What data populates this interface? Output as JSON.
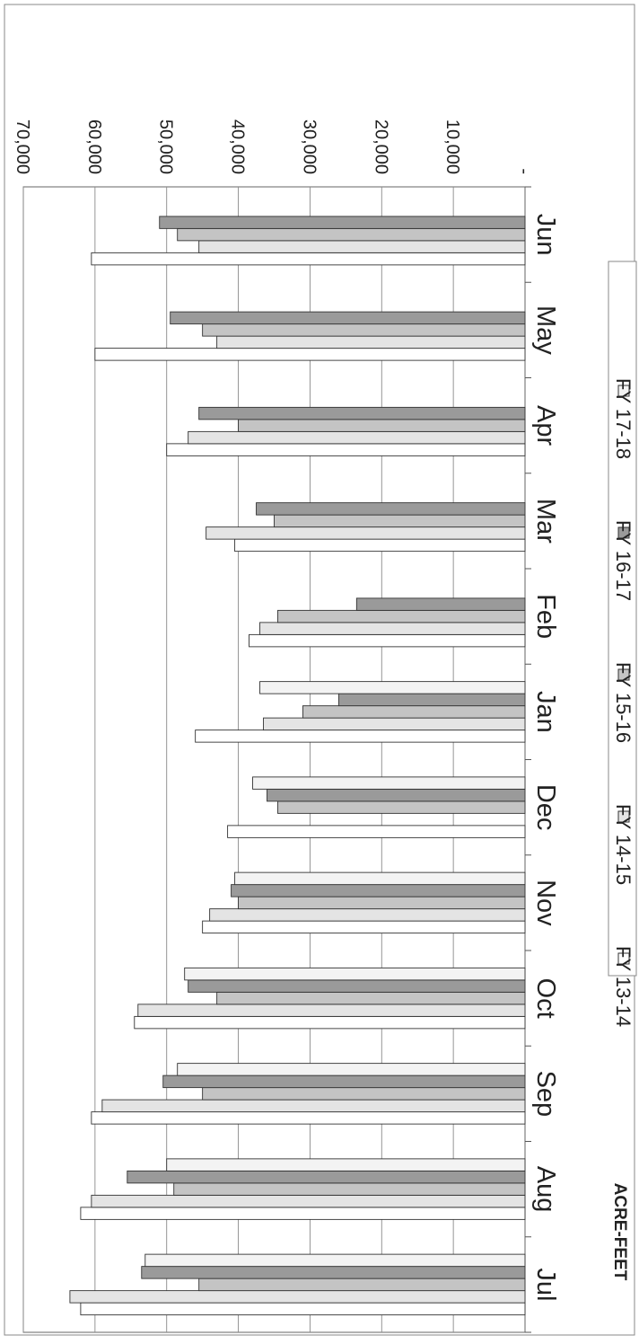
{
  "chart_data": {
    "type": "bar",
    "orientation": "rotated-180",
    "title": "",
    "xlabel": "",
    "ylabel": "ACRE-FEET",
    "ylim": [
      0,
      70000
    ],
    "yticks": [
      0,
      10000,
      20000,
      30000,
      40000,
      50000,
      60000,
      70000
    ],
    "ytick_labels": [
      "-",
      "10,000",
      "20,000",
      "30,000",
      "40,000",
      "50,000",
      "60,000",
      "70,000"
    ],
    "grid": true,
    "legend_position": "bottom",
    "categories": [
      "Jul",
      "Aug",
      "Sep",
      "Oct",
      "Nov",
      "Dec",
      "Jan",
      "Feb",
      "Mar",
      "Apr",
      "May",
      "Jun"
    ],
    "series": [
      {
        "name": "FY 13-14",
        "color": "#ffffff",
        "values": [
          62000,
          62000,
          60500,
          54500,
          45000,
          41500,
          46000,
          38500,
          40500,
          50000,
          60000,
          60500
        ]
      },
      {
        "name": "FY 14-15",
        "color": "#e4e4e4",
        "values": [
          63500,
          60500,
          59000,
          54000,
          44000,
          null,
          36500,
          37000,
          44500,
          47000,
          43000,
          45500
        ]
      },
      {
        "name": "FY 15-16",
        "color": "#c4c4c4",
        "values": [
          45500,
          49000,
          45000,
          43000,
          40000,
          34500,
          31000,
          34500,
          35000,
          40000,
          45000,
          48500
        ]
      },
      {
        "name": "FY 16-17",
        "color": "#9a9a9a",
        "values": [
          53500,
          55500,
          50500,
          47000,
          41000,
          36000,
          26000,
          23500,
          37500,
          45500,
          49500,
          51000
        ]
      },
      {
        "name": "FY 17-18",
        "color": "#f3f3f3",
        "values": [
          53000,
          50000,
          48500,
          47500,
          40500,
          38000,
          37000,
          null,
          null,
          null,
          null,
          null
        ]
      }
    ]
  }
}
